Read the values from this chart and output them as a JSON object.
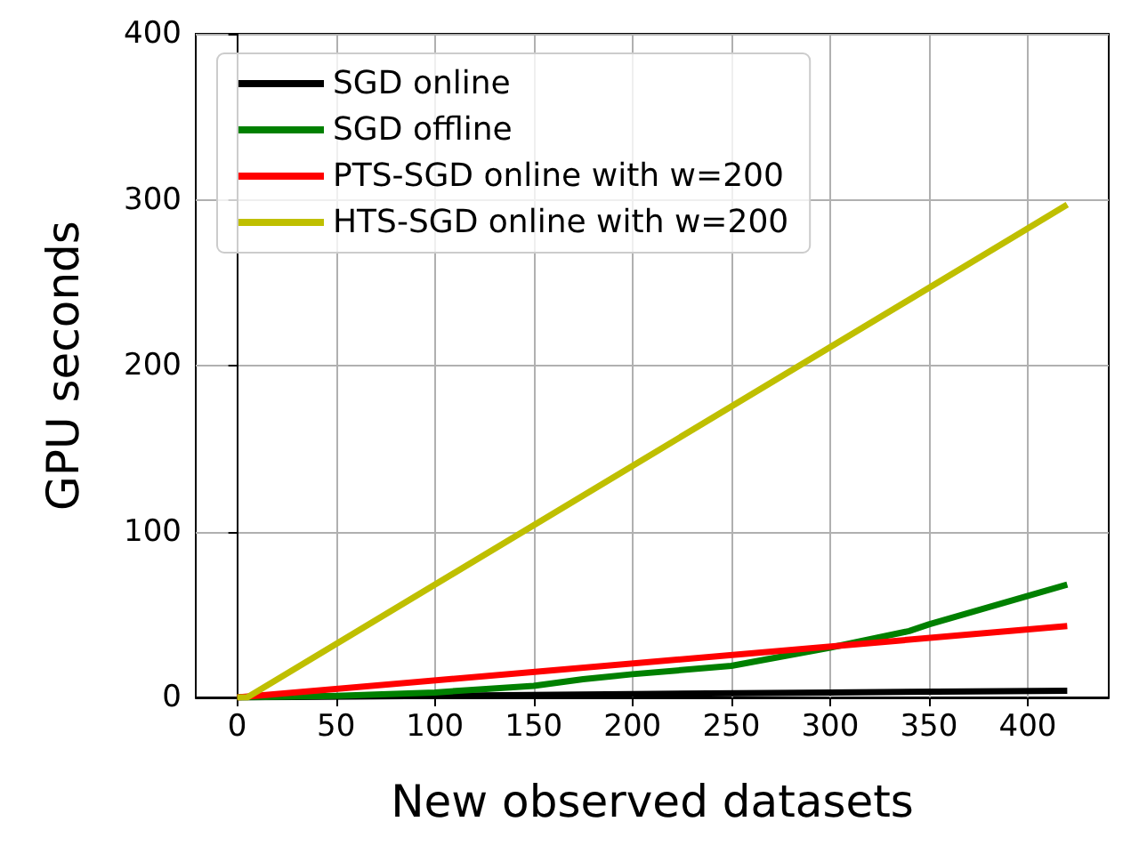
{
  "chart_data": {
    "type": "line",
    "xlabel": "New observed datasets",
    "ylabel": "GPU seconds",
    "series": [
      {
        "name": "SGD online",
        "color": "#000000",
        "x": [
          0,
          100,
          200,
          300,
          420
        ],
        "values": [
          0,
          1,
          2,
          3,
          4
        ]
      },
      {
        "name": "SGD offline",
        "color": "#008000",
        "x": [
          0,
          50,
          100,
          150,
          175,
          200,
          250,
          300,
          340,
          350,
          420
        ],
        "values": [
          0,
          1,
          3,
          7,
          11,
          14,
          19,
          30,
          40,
          44,
          68
        ]
      },
      {
        "name": "PTS-SGD online with w=200",
        "color": "#ff0000",
        "x": [
          0,
          420
        ],
        "values": [
          0,
          43
        ]
      },
      {
        "name": "HTS-SGD online with w=200",
        "color": "#bfbf00",
        "x": [
          0,
          5,
          420
        ],
        "values": [
          0,
          0,
          297
        ]
      }
    ],
    "xlim": [
      -21,
      441
    ],
    "xticks": [
      0,
      50,
      100,
      150,
      200,
      250,
      300,
      350,
      400
    ],
    "ylim": [
      0,
      400
    ],
    "yticks": [
      0,
      100,
      200,
      300,
      400
    ],
    "grid": true,
    "legend": "top left",
    "marker": "none",
    "line_style": "solid"
  }
}
